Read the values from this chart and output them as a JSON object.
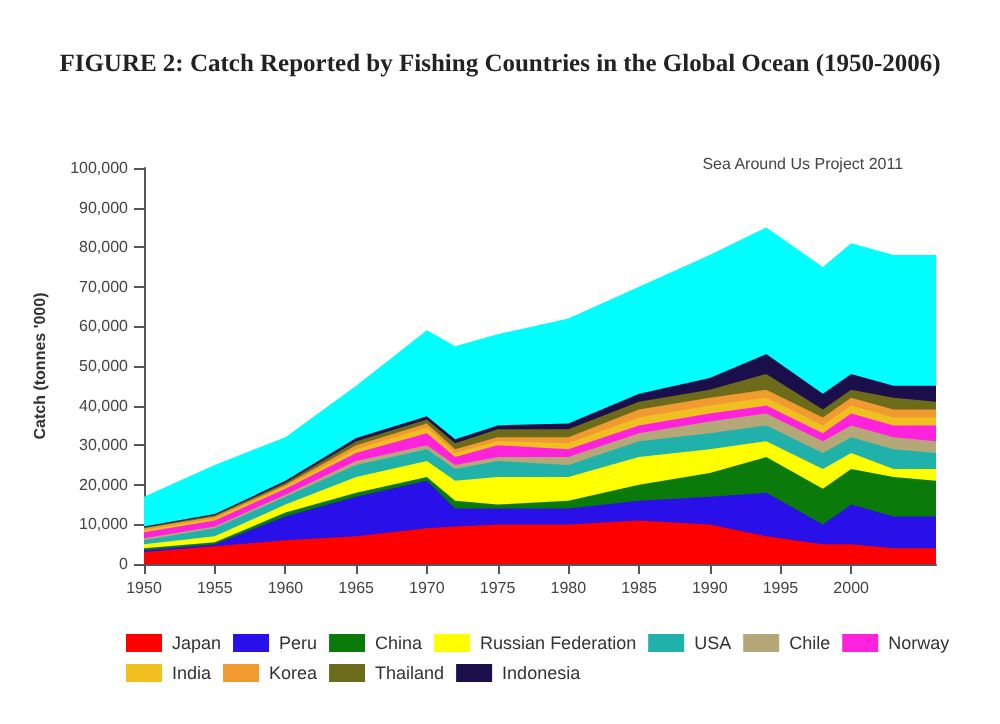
{
  "chart_data": {
    "type": "area",
    "stacked": true,
    "title": "FIGURE 2: Catch Reported by Fishing Countries in the Global Ocean (1950-2006)",
    "ylabel": "Catch (tonnes '000)",
    "annotations": [
      "Sea Around Us Project 2011"
    ],
    "x": [
      1950,
      1955,
      1960,
      1965,
      1970,
      1972,
      1975,
      1980,
      1985,
      1990,
      1994,
      1998,
      2000,
      2003,
      2006
    ],
    "series": [
      {
        "name": "Japan",
        "color": "#ff0000",
        "values": [
          3000,
          4500,
          6000,
          7000,
          9000,
          9500,
          10000,
          10000,
          11000,
          10000,
          7000,
          5000,
          5000,
          4000,
          4000
        ]
      },
      {
        "name": "Peru",
        "color": "#2a10e8",
        "values": [
          500,
          500,
          6000,
          10000,
          12000,
          4500,
          4000,
          4000,
          5000,
          7000,
          11000,
          5000,
          10000,
          8000,
          8000
        ]
      },
      {
        "name": "China",
        "color": "#0a7a0a",
        "values": [
          500,
          500,
          1000,
          1000,
          1000,
          2000,
          1000,
          2000,
          4000,
          6000,
          9000,
          9000,
          9000,
          10000,
          9000
        ]
      },
      {
        "name": "Russian Federation",
        "color": "#ffff00",
        "values": [
          1000,
          1500,
          2000,
          4000,
          4000,
          5000,
          7000,
          6000,
          7000,
          6000,
          4000,
          5000,
          4000,
          2000,
          3000
        ]
      },
      {
        "name": "USA",
        "color": "#20b2aa",
        "values": [
          1000,
          2000,
          2000,
          3000,
          3000,
          3000,
          4000,
          3000,
          4000,
          4000,
          4000,
          4000,
          4000,
          5000,
          4000
        ]
      },
      {
        "name": "Chile",
        "color": "#b5a878",
        "values": [
          500,
          500,
          500,
          1000,
          1000,
          1000,
          1000,
          2000,
          2000,
          3000,
          3000,
          3000,
          3000,
          3000,
          3000
        ]
      },
      {
        "name": "Norway",
        "color": "#ff22dd",
        "values": [
          1500,
          1500,
          1500,
          2000,
          3000,
          2000,
          3000,
          2000,
          2000,
          2000,
          2000,
          2000,
          3000,
          3000,
          4000
        ]
      },
      {
        "name": "India",
        "color": "#f0c020",
        "values": [
          500,
          500,
          500,
          1000,
          1500,
          1000,
          1000,
          1500,
          2000,
          2000,
          2000,
          2000,
          2000,
          2000,
          2000
        ]
      },
      {
        "name": "Korea",
        "color": "#f09a30",
        "values": [
          500,
          500,
          500,
          1000,
          1000,
          1000,
          1000,
          1500,
          2000,
          2000,
          2000,
          2000,
          2000,
          2000,
          2000
        ]
      },
      {
        "name": "Thailand",
        "color": "#6b6b1a",
        "values": [
          200,
          300,
          500,
          1000,
          1000,
          1500,
          2000,
          2000,
          2000,
          2000,
          4000,
          2000,
          2000,
          3000,
          2000
        ]
      },
      {
        "name": "Indonesia",
        "color": "#1a0f4a",
        "values": [
          300,
          300,
          500,
          800,
          800,
          1000,
          1000,
          1500,
          2000,
          3000,
          5000,
          4000,
          4000,
          3000,
          4000
        ]
      },
      {
        "color": "#00ffff",
        "values": [
          7500,
          12400,
          11000,
          13200,
          21700,
          23500,
          23000,
          26500,
          27000,
          31000,
          32000,
          32000,
          33000,
          33000,
          33000
        ]
      }
    ],
    "xlim": [
      1950,
      2006
    ],
    "xticks": [
      1950,
      1955,
      1960,
      1965,
      1970,
      1975,
      1980,
      1985,
      1990,
      1995,
      2000
    ],
    "ylim": [
      0,
      100000
    ],
    "yticks": [
      {
        "value": 0,
        "label": "0"
      },
      {
        "value": 10000,
        "label": "10,000"
      },
      {
        "value": 20000,
        "label": "20,000"
      },
      {
        "value": 30000,
        "label": "30,000"
      },
      {
        "value": 40000,
        "label": "40,000"
      },
      {
        "value": 50000,
        "label": "50,000"
      },
      {
        "value": 60000,
        "label": "60,000"
      },
      {
        "value": 70000,
        "label": "70,000"
      },
      {
        "value": 80000,
        "label": "80,000"
      },
      {
        "value": 90000,
        "label": "90,000"
      },
      {
        "value": 100000,
        "label": "100,000"
      }
    ],
    "grid": false,
    "legend": "bottom"
  }
}
